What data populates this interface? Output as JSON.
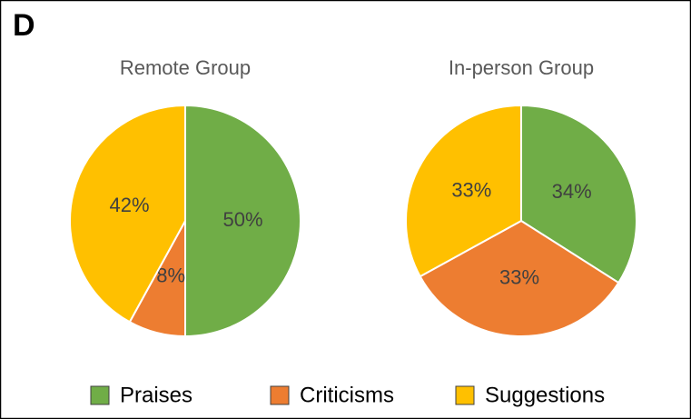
{
  "panel_label": "D",
  "legend": {
    "labels": [
      "Praises",
      "Criticisms",
      "Suggestions"
    ],
    "colors": [
      "#70ad47",
      "#ed7d31",
      "#ffc000"
    ]
  },
  "chart_data": [
    {
      "type": "pie",
      "title": "Remote Group",
      "values": [
        50,
        8,
        42
      ],
      "value_labels": [
        "50%",
        "8%",
        "42%"
      ]
    },
    {
      "type": "pie",
      "title": "In-person Group",
      "values": [
        34,
        33,
        33
      ],
      "value_labels": [
        "34%",
        "33%",
        "33%"
      ]
    }
  ]
}
